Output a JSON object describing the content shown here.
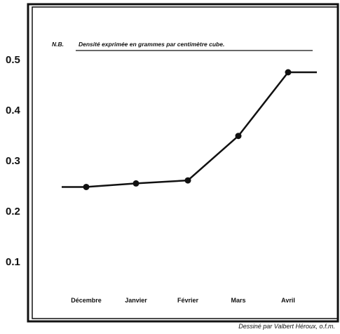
{
  "chart_data": {
    "type": "line",
    "title": "",
    "xlabel": "",
    "ylabel": "",
    "note_prefix": "N.B.",
    "note": "Densité exprimée en grammes par centimètre cube.",
    "credit": "Dessiné par Valbert Héroux, o.f.m.",
    "categories": [
      "Décembre",
      "Janvier",
      "Février",
      "Mars",
      "Avril"
    ],
    "yticks": [
      "0.1",
      "0.2",
      "0.3",
      "0.4",
      "0.5"
    ],
    "ylim": [
      0,
      0.6
    ],
    "series": [
      {
        "values": [
          0.248,
          0.255,
          0.261,
          0.349,
          0.475
        ],
        "lead_in": 0.248,
        "tail": 0.475
      }
    ],
    "grid": false,
    "legend": "none",
    "colors": {
      "line": "#111111",
      "marker": "#111111",
      "background": "#ffffff"
    }
  }
}
